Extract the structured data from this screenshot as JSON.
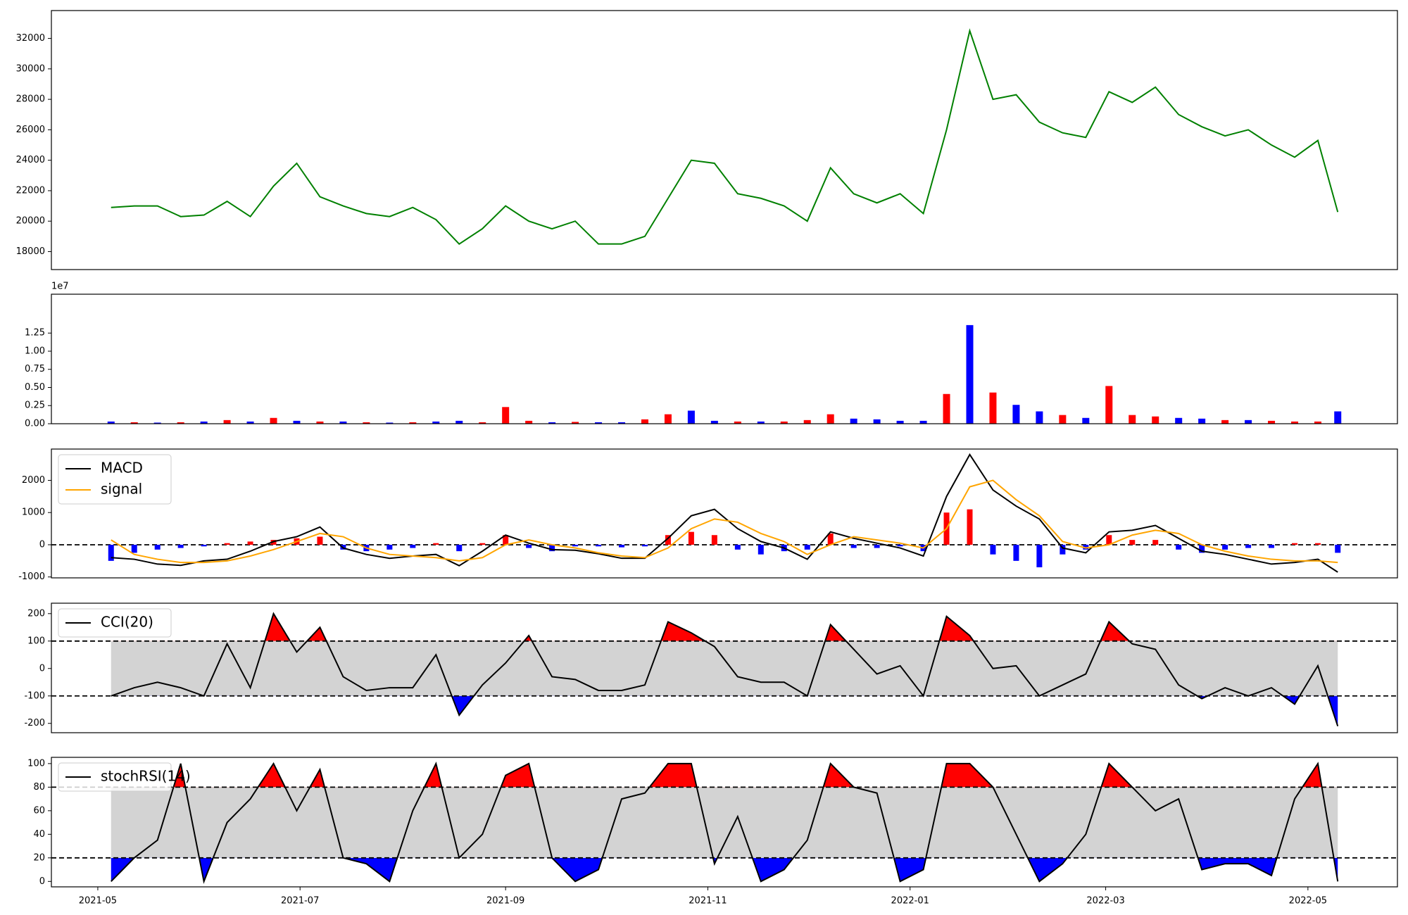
{
  "chart_data": [
    {
      "type": "line",
      "x": [
        "2021-05-05",
        "2021-05-12",
        "2021-05-19",
        "2021-05-26",
        "2021-06-02",
        "2021-06-09",
        "2021-06-16",
        "2021-06-23",
        "2021-06-30",
        "2021-07-07",
        "2021-07-14",
        "2021-07-21",
        "2021-07-28",
        "2021-08-04",
        "2021-08-11",
        "2021-08-18",
        "2021-08-25",
        "2021-09-01",
        "2021-09-08",
        "2021-09-15",
        "2021-09-22",
        "2021-09-29",
        "2021-10-06",
        "2021-10-13",
        "2021-10-20",
        "2021-10-27",
        "2021-11-03",
        "2021-11-10",
        "2021-11-17",
        "2021-11-24",
        "2021-12-01",
        "2021-12-08",
        "2021-12-15",
        "2021-12-22",
        "2021-12-29",
        "2022-01-05",
        "2022-01-12",
        "2022-01-19",
        "2022-01-26",
        "2022-02-02",
        "2022-02-09",
        "2022-02-16",
        "2022-02-23",
        "2022-03-02",
        "2022-03-09",
        "2022-03-16",
        "2022-03-23",
        "2022-03-30",
        "2022-04-06",
        "2022-04-13",
        "2022-04-20",
        "2022-04-27",
        "2022-05-04",
        "2022-05-10"
      ],
      "xlim": [
        "2021-04-17",
        "2022-05-28"
      ],
      "xticks": [
        "2021-05",
        "2021-07",
        "2021-09",
        "2021-11",
        "2022-01",
        "2022-03",
        "2022-05"
      ],
      "ylim": [
        16820,
        33830
      ],
      "yticks": [
        18000,
        20000,
        22000,
        24000,
        26000,
        28000,
        30000,
        32000
      ],
      "series": [
        {
          "color": "green",
          "values": [
            20900,
            21000,
            21000,
            20300,
            20400,
            21300,
            20300,
            22300,
            23800,
            21600,
            21000,
            20500,
            20300,
            20900,
            20100,
            18500,
            19500,
            21000,
            20000,
            19500,
            20000,
            18500,
            18500,
            19000,
            21500,
            24000,
            23800,
            21800,
            21500,
            21000,
            20000,
            23500,
            21800,
            21200,
            21800,
            20500,
            26000,
            32500,
            28000,
            28300,
            26500,
            25800,
            25500,
            28500,
            27800,
            28800,
            27000,
            26200,
            25600,
            26000,
            25000,
            24200,
            25300,
            20600
          ]
        }
      ]
    },
    {
      "type": "bar",
      "y_offset_label": "1e7",
      "ylim": [
        0,
        17860000
      ],
      "yticks": [
        {
          "value": 0,
          "label": "0.00"
        },
        {
          "value": 2500000,
          "label": "0.25"
        },
        {
          "value": 5000000,
          "label": "0.50"
        },
        {
          "value": 7500000,
          "label": "0.75"
        },
        {
          "value": 10000000,
          "label": "1.00"
        },
        {
          "value": 12500000,
          "label": "1.25"
        }
      ],
      "values": [
        300000,
        200000,
        150000,
        200000,
        300000,
        500000,
        300000,
        800000,
        400000,
        300000,
        300000,
        200000,
        150000,
        200000,
        300000,
        400000,
        200000,
        2300000,
        400000,
        200000,
        250000,
        200000,
        200000,
        600000,
        1300000,
        1800000,
        400000,
        300000,
        300000,
        300000,
        500000,
        1300000,
        700000,
        600000,
        400000,
        400000,
        4100000,
        13600000,
        4300000,
        2600000,
        1700000,
        1200000,
        800000,
        5200000,
        1200000,
        1000000,
        800000,
        700000,
        500000,
        500000,
        400000,
        300000,
        300000,
        1700000
      ],
      "colors": [
        "blue",
        "red",
        "blue",
        "red",
        "blue",
        "red",
        "blue",
        "red",
        "blue",
        "red",
        "blue",
        "red",
        "blue",
        "red",
        "blue",
        "blue",
        "red",
        "red",
        "red",
        "blue",
        "red",
        "blue",
        "blue",
        "red",
        "red",
        "blue",
        "blue",
        "red",
        "blue",
        "red",
        "red",
        "red",
        "blue",
        "blue",
        "blue",
        "blue",
        "red",
        "blue",
        "red",
        "blue",
        "blue",
        "red",
        "blue",
        "red",
        "red",
        "red",
        "blue",
        "blue",
        "red",
        "blue",
        "red",
        "red",
        "red",
        "blue"
      ]
    },
    {
      "type": "combo",
      "ylim": [
        -1028,
        2972
      ],
      "yticks": [
        -1000,
        0,
        1000,
        2000
      ],
      "hlines": [
        0
      ],
      "legend": "upper left",
      "series": [
        {
          "name": "MACD",
          "color": "black",
          "values": [
            -400,
            -450,
            -600,
            -640,
            -500,
            -450,
            -200,
            100,
            250,
            550,
            -100,
            -300,
            -420,
            -350,
            -300,
            -650,
            -200,
            300,
            50,
            -150,
            -170,
            -280,
            -420,
            -420,
            200,
            900,
            1100,
            500,
            100,
            -100,
            -450,
            400,
            200,
            50,
            -100,
            -350,
            1500,
            2800,
            1700,
            1200,
            800,
            -100,
            -250,
            400,
            450,
            600,
            200,
            -200,
            -300,
            -450,
            -600,
            -550,
            -450,
            -850
          ]
        },
        {
          "name": "signal",
          "color": "orange",
          "values": [
            150,
            -300,
            -450,
            -550,
            -550,
            -500,
            -350,
            -150,
            100,
            350,
            250,
            -100,
            -300,
            -350,
            -400,
            -500,
            -400,
            0,
            150,
            0,
            -100,
            -250,
            -350,
            -400,
            -100,
            500,
            800,
            700,
            350,
            100,
            -300,
            0,
            250,
            150,
            50,
            -100,
            500,
            1800,
            2000,
            1400,
            900,
            100,
            -100,
            0,
            300,
            450,
            350,
            0,
            -200,
            -350,
            -450,
            -500,
            -500,
            -550
          ]
        }
      ],
      "histogram": {
        "pos_color": "red",
        "neg_color": "blue",
        "values": [
          -500,
          -250,
          -150,
          -100,
          -50,
          50,
          100,
          150,
          200,
          250,
          -150,
          -200,
          -150,
          -100,
          50,
          -200,
          50,
          300,
          -100,
          -200,
          -50,
          -50,
          -80,
          -50,
          300,
          400,
          300,
          -150,
          -300,
          -200,
          -150,
          350,
          -100,
          -100,
          -50,
          -200,
          1000,
          1100,
          -300,
          -500,
          -700,
          -300,
          -150,
          300,
          150,
          150,
          -150,
          -250,
          -150,
          -100,
          -100,
          50,
          50,
          -250
        ]
      }
    },
    {
      "type": "line",
      "ylim": [
        -234,
        238
      ],
      "yticks": [
        -200,
        -100,
        0,
        100,
        200
      ],
      "hlines": [
        100,
        -100
      ],
      "band_color": "lightgray",
      "fill_above": "red",
      "fill_below": "blue",
      "legend": "upper left",
      "series": [
        {
          "name": "CCI(20)",
          "color": "black",
          "values": [
            -100,
            -70,
            -50,
            -70,
            -100,
            90,
            -70,
            200,
            60,
            150,
            -30,
            -80,
            -70,
            -70,
            50,
            -170,
            -60,
            20,
            120,
            -30,
            -40,
            -80,
            -80,
            -60,
            170,
            130,
            80,
            -30,
            -50,
            -50,
            -100,
            160,
            70,
            -20,
            10,
            -100,
            190,
            120,
            0,
            10,
            -100,
            -60,
            -20,
            170,
            90,
            70,
            -60,
            -110,
            -70,
            -100,
            -70,
            -130,
            10,
            -210
          ]
        }
      ]
    },
    {
      "type": "line",
      "ylim": [
        -4.6,
        105.3
      ],
      "yticks": [
        0,
        20,
        40,
        60,
        80,
        100
      ],
      "hlines": [
        80,
        20
      ],
      "band_color": "lightgray",
      "fill_above": "red",
      "fill_below": "blue",
      "legend": "upper left",
      "series": [
        {
          "name": "stochRSI(14)",
          "color": "black",
          "values": [
            0,
            20,
            35,
            100,
            0,
            50,
            70,
            100,
            60,
            95,
            20,
            15,
            0,
            60,
            100,
            20,
            40,
            90,
            100,
            20,
            0,
            10,
            70,
            75,
            100,
            100,
            15,
            55,
            0,
            10,
            35,
            100,
            80,
            75,
            0,
            10,
            100,
            100,
            80,
            40,
            0,
            15,
            40,
            100,
            80,
            60,
            70,
            10,
            15,
            15,
            5,
            70,
            100,
            0
          ]
        }
      ]
    }
  ]
}
